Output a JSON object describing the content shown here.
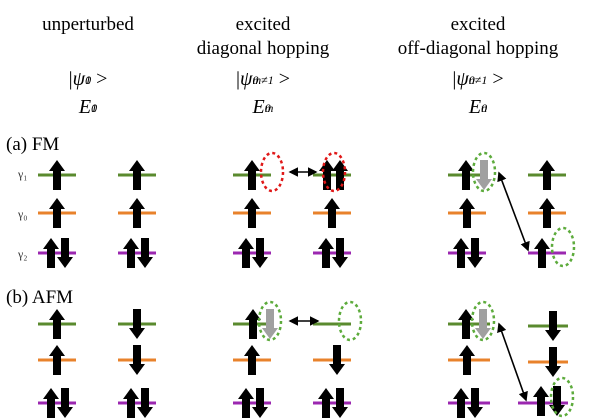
{
  "columns": [
    {
      "header_lines": [
        "unperturbed"
      ],
      "state": {
        "base": "ψ",
        "sub": "1",
        "sup": "0"
      },
      "energy": {
        "base": "E",
        "sub": "1",
        "sup": "0"
      }
    },
    {
      "header_lines": [
        "excited",
        "diagonal hopping"
      ],
      "state": {
        "base": "ψ",
        "sub": "m≠1",
        "sup": "0"
      },
      "energy": {
        "base": "E",
        "sub": "m",
        "sup": "0"
      }
    },
    {
      "header_lines": [
        "excited",
        "off-diagonal hopping"
      ],
      "state": {
        "base": "ψ",
        "sub": "n≠1",
        "sup": "0"
      },
      "energy": {
        "base": "E",
        "sub": "n",
        "sup": "0"
      }
    }
  ],
  "ket_open": "|",
  "ket_close": ">",
  "panels": [
    {
      "label": "(a) FM",
      "levels": [
        "γ₁",
        "γ₀",
        "γ₂"
      ]
    },
    {
      "label": "(b) AFM"
    }
  ],
  "colors": {
    "gamma1": "#5a8a2e",
    "gamma0": "#e8822b",
    "gamma2": "#9b27b0",
    "arrow": "#000000",
    "arrow_moved": "#a0a0a0",
    "circle_red": "#e01818",
    "circle_green": "#5dab3c"
  }
}
